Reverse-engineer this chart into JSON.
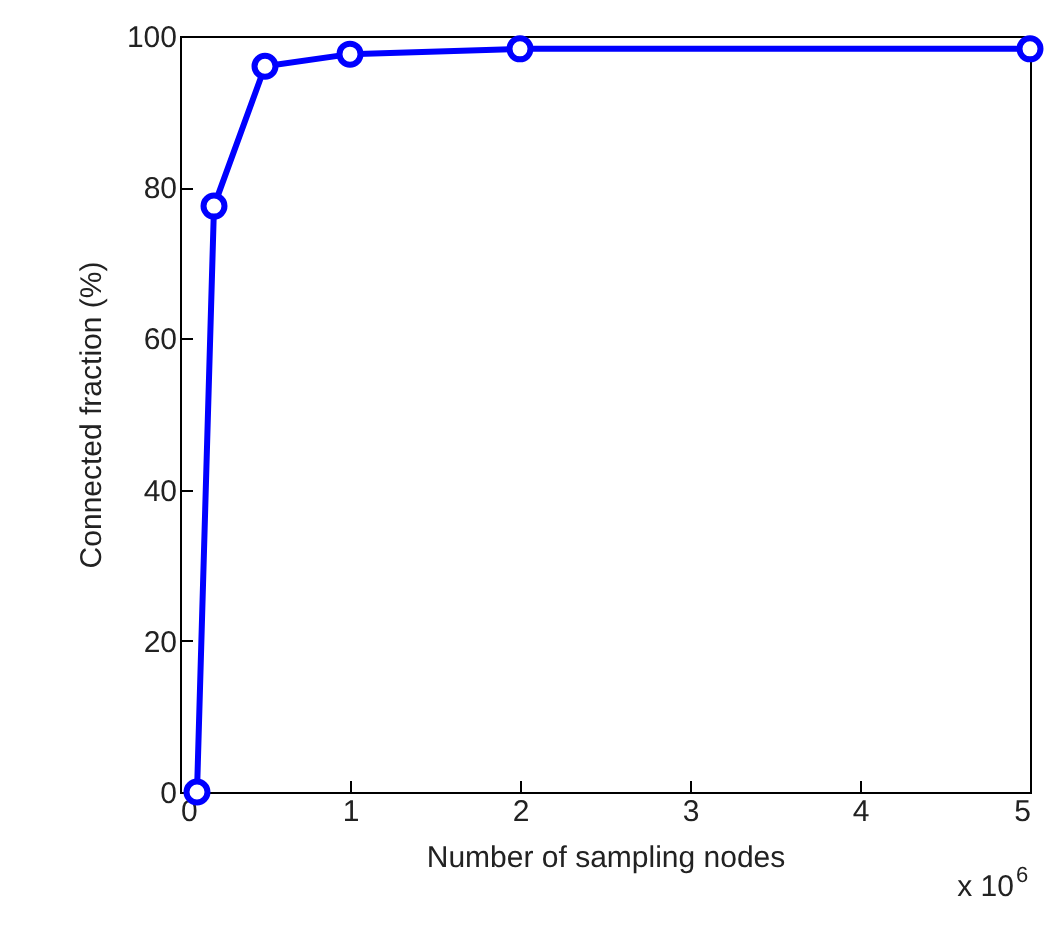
{
  "chart_data": {
    "type": "line",
    "xlabel": "Number of sampling nodes",
    "ylabel": "Connected fraction (%)",
    "x": [
      0.1,
      0.2,
      0.5,
      1,
      2,
      5
    ],
    "series": [
      {
        "color": "#0000ff",
        "values": [
          0,
          77.5,
          96,
          97.6,
          98.3,
          98.3
        ]
      }
    ],
    "xlim": [
      0,
      5
    ],
    "xticks": [
      0,
      1,
      2,
      3,
      4,
      5
    ],
    "ylim": [
      0,
      100
    ],
    "yticks": [
      0,
      20,
      40,
      60,
      80,
      100
    ],
    "marker": "circle",
    "line_style": "solid",
    "grid": false,
    "annotations": [
      "x 10$^{6}$"
    ]
  }
}
